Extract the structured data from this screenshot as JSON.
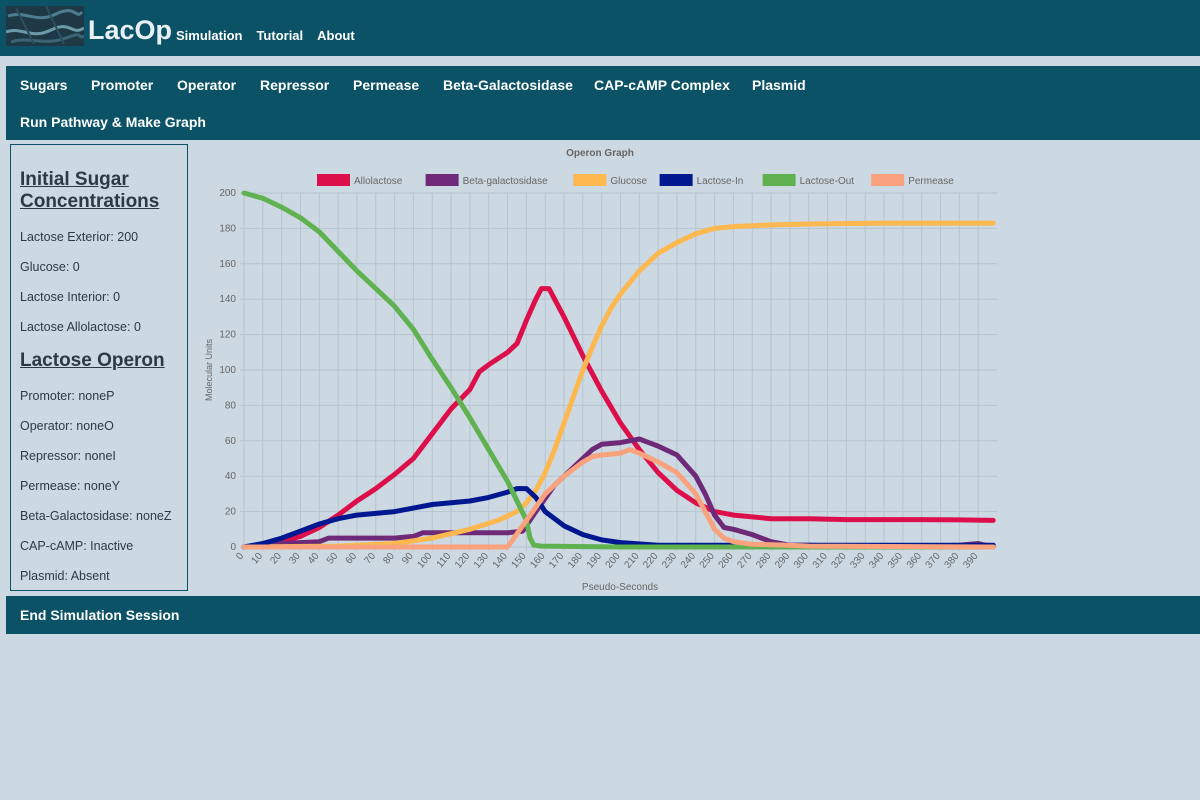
{
  "header": {
    "brand": "LacOp",
    "nav": [
      "Simulation",
      "Tutorial",
      "About"
    ]
  },
  "main_nav": [
    "Sugars",
    "Promoter",
    "Operator",
    "Repressor",
    "Permease",
    "Beta-Galactosidase",
    "CAP-cAMP Complex",
    "Plasmid",
    "Run Pathway & Make Graph"
  ],
  "sidebar": {
    "sugar_heading": "Initial Sugar Concentrations",
    "sugar_lines": [
      "Lactose Exterior: 200",
      "Glucose: 0",
      "Lactose Interior: 0",
      "Lactose Allolactose: 0"
    ],
    "operon_heading": "Lactose Operon",
    "operon_lines": [
      "Promoter: noneP",
      "Operator: noneO",
      "Repressor: noneI",
      "Permease: noneY",
      "Beta-Galactosidase: noneZ",
      "CAP-cAMP: Inactive",
      "Plasmid: Absent"
    ]
  },
  "footer": {
    "end_session": "End Simulation Session"
  },
  "colors": {
    "bar": "#0b5266",
    "background": "#ccd9e3"
  },
  "chart_data": {
    "type": "line",
    "title": "Operon Graph",
    "xlabel": "Pseudo-Seconds",
    "ylabel": "Molecular Units",
    "xlim": [
      0,
      400
    ],
    "ylim": [
      0,
      200
    ],
    "x_ticks": [
      0,
      10,
      20,
      30,
      40,
      50,
      60,
      70,
      80,
      90,
      100,
      110,
      120,
      130,
      140,
      150,
      160,
      170,
      180,
      190,
      200,
      210,
      220,
      230,
      240,
      250,
      260,
      270,
      280,
      290,
      300,
      310,
      320,
      330,
      340,
      350,
      360,
      370,
      380,
      390
    ],
    "y_ticks": [
      0,
      20,
      40,
      60,
      80,
      100,
      120,
      140,
      160,
      180,
      200
    ],
    "grid": true,
    "legend_position": "top",
    "series": [
      {
        "name": "Allolactose",
        "color": "#dc0f4b",
        "points": [
          [
            0,
            0
          ],
          [
            10,
            1
          ],
          [
            20,
            3
          ],
          [
            30,
            6
          ],
          [
            40,
            11
          ],
          [
            50,
            18
          ],
          [
            60,
            26
          ],
          [
            70,
            33
          ],
          [
            80,
            41
          ],
          [
            90,
            50
          ],
          [
            100,
            64
          ],
          [
            110,
            78
          ],
          [
            120,
            89
          ],
          [
            125,
            99
          ],
          [
            130,
            103
          ],
          [
            140,
            110
          ],
          [
            145,
            115
          ],
          [
            150,
            128
          ],
          [
            155,
            140
          ],
          [
            158,
            146
          ],
          [
            162,
            146
          ],
          [
            170,
            130
          ],
          [
            180,
            108
          ],
          [
            190,
            88
          ],
          [
            200,
            70
          ],
          [
            210,
            55
          ],
          [
            220,
            42
          ],
          [
            230,
            32
          ],
          [
            240,
            25
          ],
          [
            250,
            20
          ],
          [
            260,
            18
          ],
          [
            270,
            17
          ],
          [
            280,
            16
          ],
          [
            290,
            16
          ],
          [
            300,
            16
          ],
          [
            320,
            15.5
          ],
          [
            340,
            15.5
          ],
          [
            360,
            15.5
          ],
          [
            380,
            15.3
          ],
          [
            398,
            15
          ]
        ]
      },
      {
        "name": "Beta-galactosidase",
        "color": "#6e2a78",
        "points": [
          [
            0,
            0
          ],
          [
            20,
            2
          ],
          [
            30,
            2.5
          ],
          [
            40,
            3
          ],
          [
            45,
            5
          ],
          [
            80,
            5
          ],
          [
            90,
            6
          ],
          [
            95,
            8
          ],
          [
            140,
            8
          ],
          [
            148,
            9
          ],
          [
            155,
            20
          ],
          [
            165,
            35
          ],
          [
            175,
            45
          ],
          [
            185,
            55
          ],
          [
            190,
            58
          ],
          [
            200,
            59
          ],
          [
            205,
            60
          ],
          [
            210,
            61
          ],
          [
            215,
            59
          ],
          [
            220,
            57
          ],
          [
            230,
            52
          ],
          [
            240,
            40
          ],
          [
            245,
            30
          ],
          [
            250,
            18
          ],
          [
            255,
            11
          ],
          [
            260,
            10
          ],
          [
            270,
            7
          ],
          [
            280,
            3
          ],
          [
            290,
            1
          ],
          [
            300,
            1
          ],
          [
            320,
            0.5
          ],
          [
            360,
            0.5
          ],
          [
            380,
            1
          ],
          [
            390,
            2
          ],
          [
            398,
            0
          ]
        ]
      },
      {
        "name": "Glucose",
        "color": "#fdb850",
        "points": [
          [
            0,
            0
          ],
          [
            50,
            0.5
          ],
          [
            80,
            2
          ],
          [
            100,
            5
          ],
          [
            120,
            10
          ],
          [
            135,
            15
          ],
          [
            145,
            20
          ],
          [
            150,
            25
          ],
          [
            155,
            32
          ],
          [
            160,
            42
          ],
          [
            165,
            55
          ],
          [
            170,
            70
          ],
          [
            175,
            85
          ],
          [
            180,
            100
          ],
          [
            185,
            113
          ],
          [
            190,
            125
          ],
          [
            195,
            135
          ],
          [
            200,
            143
          ],
          [
            210,
            156
          ],
          [
            220,
            166
          ],
          [
            230,
            172
          ],
          [
            240,
            177
          ],
          [
            250,
            180
          ],
          [
            260,
            181
          ],
          [
            280,
            182
          ],
          [
            300,
            182.5
          ],
          [
            340,
            183
          ],
          [
            398,
            183
          ]
        ]
      },
      {
        "name": "Lactose-In",
        "color": "#00188f",
        "points": [
          [
            0,
            0
          ],
          [
            10,
            2
          ],
          [
            20,
            5
          ],
          [
            30,
            9
          ],
          [
            40,
            13
          ],
          [
            50,
            16
          ],
          [
            60,
            18
          ],
          [
            70,
            19
          ],
          [
            80,
            20
          ],
          [
            90,
            22
          ],
          [
            100,
            24
          ],
          [
            110,
            25
          ],
          [
            120,
            26
          ],
          [
            130,
            28
          ],
          [
            140,
            31
          ],
          [
            145,
            33
          ],
          [
            150,
            33
          ],
          [
            155,
            28
          ],
          [
            160,
            20
          ],
          [
            170,
            12
          ],
          [
            180,
            7
          ],
          [
            190,
            4
          ],
          [
            200,
            2.5
          ],
          [
            220,
            1
          ],
          [
            240,
            1
          ],
          [
            300,
            1
          ],
          [
            398,
            1
          ]
        ]
      },
      {
        "name": "Lactose-Out",
        "color": "#5fb24f",
        "points": [
          [
            0,
            200
          ],
          [
            10,
            197
          ],
          [
            20,
            192
          ],
          [
            30,
            186
          ],
          [
            40,
            178
          ],
          [
            50,
            167
          ],
          [
            60,
            156
          ],
          [
            70,
            146
          ],
          [
            80,
            136
          ],
          [
            90,
            123
          ],
          [
            100,
            106
          ],
          [
            110,
            90
          ],
          [
            120,
            73
          ],
          [
            130,
            55
          ],
          [
            140,
            37
          ],
          [
            145,
            26
          ],
          [
            150,
            15
          ],
          [
            152,
            5
          ],
          [
            154,
            1
          ],
          [
            158,
            0.5
          ],
          [
            200,
            0
          ],
          [
            398,
            0
          ]
        ]
      },
      {
        "name": "Permease",
        "color": "#f9a27e",
        "points": [
          [
            0,
            0
          ],
          [
            140,
            0
          ],
          [
            150,
            15
          ],
          [
            160,
            30
          ],
          [
            170,
            40
          ],
          [
            180,
            48
          ],
          [
            185,
            51
          ],
          [
            190,
            52
          ],
          [
            200,
            53
          ],
          [
            205,
            55
          ],
          [
            210,
            53
          ],
          [
            220,
            48
          ],
          [
            230,
            42
          ],
          [
            240,
            30
          ],
          [
            245,
            20
          ],
          [
            250,
            10
          ],
          [
            255,
            5
          ],
          [
            260,
            3
          ],
          [
            270,
            1.5
          ],
          [
            290,
            1
          ],
          [
            300,
            0.5
          ],
          [
            398,
            0
          ]
        ]
      }
    ]
  }
}
